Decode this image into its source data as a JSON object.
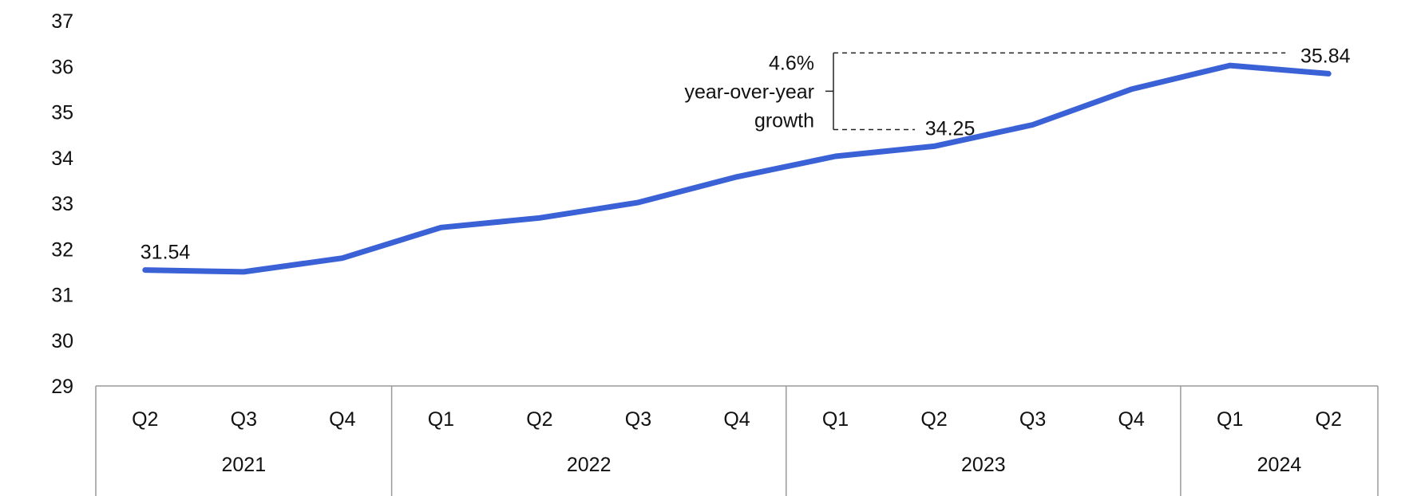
{
  "chart_data": {
    "type": "line",
    "title": "",
    "xlabel": "",
    "ylabel": "",
    "ylim": [
      29,
      37
    ],
    "yticks": [
      "29",
      "30",
      "31",
      "32",
      "33",
      "34",
      "35",
      "36",
      "37"
    ],
    "quarters": [
      "Q2",
      "Q3",
      "Q4",
      "Q1",
      "Q2",
      "Q3",
      "Q4",
      "Q1",
      "Q2",
      "Q3",
      "Q4",
      "Q1",
      "Q2"
    ],
    "years": [
      {
        "label": "2021",
        "count": 3
      },
      {
        "label": "2022",
        "count": 4
      },
      {
        "label": "2023",
        "count": 4
      },
      {
        "label": "2024",
        "count": 2
      }
    ],
    "series": [
      {
        "values": [
          31.54,
          31.5,
          31.8,
          32.47,
          32.68,
          33.02,
          33.58,
          34.03,
          34.25,
          34.72,
          35.5,
          36.02,
          35.84
        ]
      }
    ],
    "line_color": "#3a62d6",
    "data_labels": [
      {
        "index": 0,
        "text": "31.54"
      },
      {
        "index": 8,
        "text": "34.25"
      },
      {
        "index": 12,
        "text": "35.84"
      }
    ],
    "annotation": {
      "lines": [
        "4.6%",
        "year-over-year",
        "growth"
      ]
    }
  }
}
